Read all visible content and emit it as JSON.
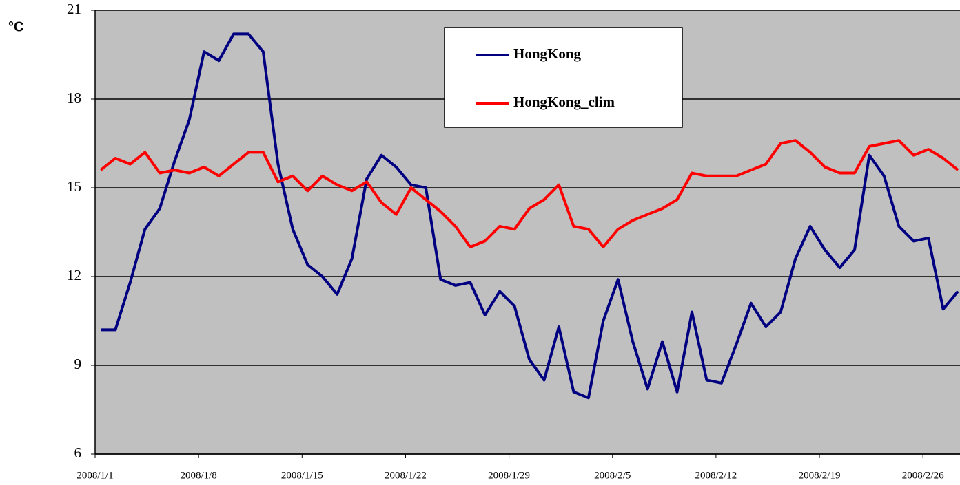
{
  "chart_data": {
    "type": "line",
    "y_label": "°C",
    "categories": [
      "2008/1/1",
      null,
      null,
      null,
      null,
      null,
      null,
      "2008/1/8",
      null,
      null,
      null,
      null,
      null,
      null,
      "2008/1/15",
      null,
      null,
      null,
      null,
      null,
      null,
      "2008/1/22",
      null,
      null,
      null,
      null,
      null,
      null,
      "2008/1/29",
      null,
      null,
      null,
      null,
      null,
      null,
      "2008/2/5",
      null,
      null,
      null,
      null,
      null,
      null,
      "2008/2/12",
      null,
      null,
      null,
      null,
      null,
      null,
      "2008/2/19",
      null,
      null,
      null,
      null,
      null,
      null,
      "2008/2/26",
      null,
      null
    ],
    "series": [
      {
        "name": "HongKong",
        "color": "#000080",
        "values": [
          10.2,
          10.2,
          11.8,
          13.6,
          14.3,
          15.9,
          17.3,
          19.6,
          19.3,
          20.2,
          20.2,
          19.6,
          15.8,
          13.6,
          12.4,
          12.0,
          11.4,
          12.6,
          15.3,
          16.1,
          15.7,
          15.1,
          15.0,
          11.9,
          11.7,
          11.8,
          10.7,
          11.5,
          11.0,
          9.2,
          8.5,
          10.3,
          8.1,
          7.9,
          10.5,
          11.9,
          9.8,
          8.2,
          9.8,
          8.1,
          10.8,
          8.5,
          8.4,
          9.7,
          11.1,
          10.3,
          10.8,
          12.6,
          13.7,
          12.9,
          12.3,
          12.9,
          16.1,
          15.4,
          13.7,
          13.2,
          13.3,
          10.9,
          11.5
        ]
      },
      {
        "name": "HongKong_clim",
        "color": "#ff0000",
        "values": [
          15.6,
          16.0,
          15.8,
          16.2,
          15.5,
          15.6,
          15.5,
          15.7,
          15.4,
          15.8,
          16.2,
          16.2,
          15.2,
          15.4,
          14.9,
          15.4,
          15.1,
          14.9,
          15.2,
          14.5,
          14.1,
          15.0,
          14.6,
          14.2,
          13.7,
          13.0,
          13.2,
          13.7,
          13.6,
          14.3,
          14.6,
          15.1,
          13.7,
          13.6,
          13.0,
          13.6,
          13.9,
          14.1,
          14.3,
          14.6,
          15.5,
          15.4,
          15.4,
          15.4,
          15.6,
          15.8,
          16.5,
          16.6,
          16.2,
          15.7,
          15.5,
          15.5,
          16.4,
          16.5,
          16.6,
          16.1,
          16.3,
          16.0,
          15.6
        ]
      }
    ],
    "ylim": [
      6,
      21
    ],
    "yticks": [
      6,
      9,
      12,
      15,
      18,
      21
    ],
    "grid": true,
    "legend": "top"
  }
}
